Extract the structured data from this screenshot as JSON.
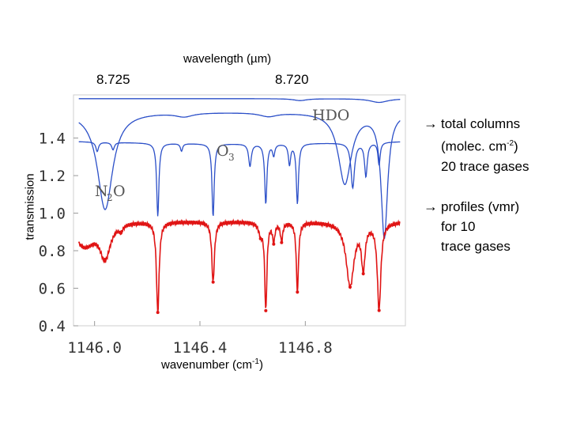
{
  "chart_data": {
    "type": "line",
    "title": "",
    "top_axis": {
      "label": "wavelength (µm)",
      "ticks": [
        {
          "value": 8.725,
          "label": "8.725"
        },
        {
          "value": 8.72,
          "label": "8.720"
        }
      ]
    },
    "xlabel_prefix": "wavenumber (cm",
    "xlabel_sup": "-1",
    "xlabel_suffix": ")",
    "ylabel": "transmission",
    "xlim": [
      1145.92,
      1147.18
    ],
    "ylim": [
      0.4,
      1.63
    ],
    "xticks": [
      {
        "value": 1146.0,
        "label": "1146.0"
      },
      {
        "value": 1146.4,
        "label": "1146.4"
      },
      {
        "value": 1146.8,
        "label": "1146.8"
      }
    ],
    "yticks": [
      {
        "value": 0.4,
        "label": "0.4"
      },
      {
        "value": 0.6,
        "label": "0.6"
      },
      {
        "value": 0.8,
        "label": "0.8"
      },
      {
        "value": 1.0,
        "label": "1.0"
      },
      {
        "value": 1.2,
        "label": "1.2"
      },
      {
        "value": 1.4,
        "label": "1.4"
      }
    ],
    "series": [
      {
        "name": "HDO",
        "label": "HDO",
        "color": "#2b4fc8",
        "baseline": 1.61,
        "lines": [
          [
            1146.78,
            0.01,
            0.03
          ],
          [
            1147.08,
            0.02,
            0.04
          ]
        ]
      },
      {
        "name": "O3",
        "label": "O",
        "label_sub": "3",
        "color": "#2b4fc8",
        "baseline": 1.4,
        "env": 0.1,
        "lines": [
          [
            1146.01,
            0.05,
            0.006
          ],
          [
            1146.07,
            0.04,
            0.006
          ],
          [
            1146.24,
            0.39,
            0.005
          ],
          [
            1146.33,
            0.04,
            0.005
          ],
          [
            1146.45,
            0.39,
            0.005
          ],
          [
            1146.59,
            0.12,
            0.006
          ],
          [
            1146.65,
            0.32,
            0.005
          ],
          [
            1146.68,
            0.06,
            0.005
          ],
          [
            1146.74,
            0.11,
            0.005
          ],
          [
            1146.77,
            0.32,
            0.005
          ],
          [
            1146.98,
            0.24,
            0.008
          ],
          [
            1147.03,
            0.18,
            0.006
          ],
          [
            1147.08,
            0.12,
            0.005
          ]
        ]
      },
      {
        "name": "N2O",
        "label": "N",
        "label_sub": "2",
        "label_suffix": "O",
        "color": "#2b4fc8",
        "baseline": 1.54,
        "lines": [
          [
            1146.04,
            0.52,
            0.035
          ],
          [
            1146.34,
            0.02,
            0.04
          ],
          [
            1146.66,
            0.02,
            0.04
          ],
          [
            1146.95,
            0.38,
            0.03
          ],
          [
            1147.1,
            0.66,
            0.015
          ]
        ]
      },
      {
        "name": "measured",
        "label": "",
        "color": "#e01414",
        "marker": "dot",
        "points_hint": "measured spectrum, red dots",
        "lines": [
          [
            1146.04,
            0.2,
            0.025
          ],
          [
            1146.1,
            0.03,
            0.008
          ],
          [
            1146.24,
            0.48,
            0.006
          ],
          [
            1146.45,
            0.32,
            0.006
          ],
          [
            1146.63,
            0.06,
            0.008
          ],
          [
            1146.65,
            0.46,
            0.005
          ],
          [
            1146.68,
            0.1,
            0.005
          ],
          [
            1146.71,
            0.1,
            0.005
          ],
          [
            1146.77,
            0.37,
            0.005
          ],
          [
            1146.97,
            0.34,
            0.018
          ],
          [
            1147.02,
            0.23,
            0.008
          ],
          [
            1147.08,
            0.46,
            0.008
          ]
        ]
      }
    ]
  },
  "annotations": {
    "item1": {
      "line1": "total columns",
      "line2_prefix": "(molec. cm",
      "line2_sup": "-2",
      "line2_suffix": ")",
      "line3": "20 trace gases"
    },
    "item2": {
      "line1": "profiles (vmr)",
      "line2": "for 10",
      "line3": "trace gases"
    },
    "arrow_glyph": "→"
  }
}
